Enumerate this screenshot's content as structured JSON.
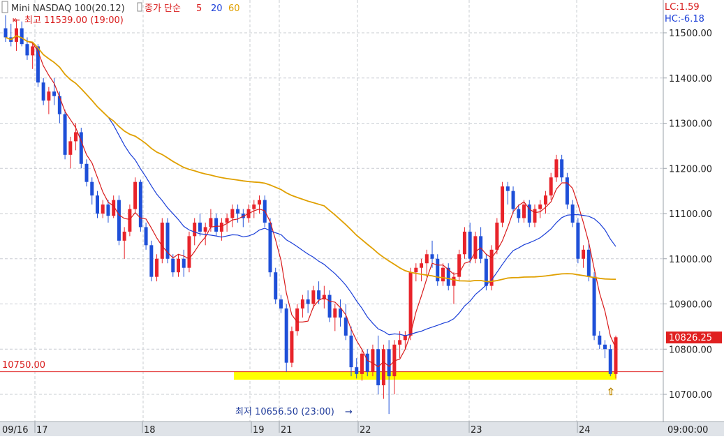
{
  "legend": {
    "instrument": "Mini NASDAQ 100(20.12)",
    "ma_label": "종가 단순",
    "ma_periods": [
      "5",
      "20",
      "60"
    ],
    "ma_colors": [
      "#d81b1b",
      "#1b3fd8",
      "#e0a000"
    ]
  },
  "top_right": {
    "lc": "LC:1.59",
    "hc": "HC:-6.18"
  },
  "annotations": {
    "high": "최고 11539.00 (19:00)",
    "low": "최저 10656.50 (23:00)",
    "ref_line_label": "10750.00",
    "current_price": "10826.25"
  },
  "colors": {
    "up": "#e8232a",
    "down": "#1e4fd8",
    "ref_line": "#e02020",
    "highlight": "#ffff00",
    "price_tag": "#e02020"
  },
  "chart_data": {
    "type": "candlestick",
    "title": "Mini NASDAQ 100(20.12)",
    "y_ticks": [
      10700,
      10800,
      10900,
      11000,
      11100,
      11200,
      11300,
      11400,
      11500
    ],
    "y_tick_labels": [
      "10700.00",
      "10800.00",
      "10900.00",
      "11000.00",
      "11100.00",
      "11200.00",
      "11300.00",
      "11400.00",
      "11500.00"
    ],
    "ylim": [
      10640,
      11560
    ],
    "x_labels": [
      "09/16",
      "17",
      "18",
      "19",
      "21",
      "22",
      "23",
      "24",
      "09:00:00"
    ],
    "grid": true,
    "reference_line": 10750,
    "last_price": 10826.25,
    "high": {
      "value": 11539,
      "time": "19:00"
    },
    "low": {
      "value": 10656.5,
      "time": "23:00"
    },
    "ohlc": [
      [
        11510,
        11539,
        11480,
        11490
      ],
      [
        11490,
        11520,
        11470,
        11480
      ],
      [
        11480,
        11530,
        11460,
        11510
      ],
      [
        11510,
        11525,
        11470,
        11475
      ],
      [
        11475,
        11490,
        11440,
        11450
      ],
      [
        11450,
        11480,
        11420,
        11470
      ],
      [
        11470,
        11475,
        11380,
        11390
      ],
      [
        11390,
        11400,
        11340,
        11350
      ],
      [
        11350,
        11380,
        11320,
        11370
      ],
      [
        11370,
        11400,
        11340,
        11360
      ],
      [
        11360,
        11370,
        11300,
        11320
      ],
      [
        11320,
        11330,
        11220,
        11230
      ],
      [
        11230,
        11270,
        11200,
        11260
      ],
      [
        11260,
        11300,
        11240,
        11280
      ],
      [
        11280,
        11290,
        11200,
        11210
      ],
      [
        11210,
        11220,
        11160,
        11170
      ],
      [
        11170,
        11180,
        11120,
        11140
      ],
      [
        11140,
        11150,
        11090,
        11100
      ],
      [
        11100,
        11130,
        11090,
        11120
      ],
      [
        11120,
        11130,
        11080,
        11095
      ],
      [
        11095,
        11140,
        11090,
        11130
      ],
      [
        11130,
        11140,
        11030,
        11040
      ],
      [
        11040,
        11070,
        11000,
        11060
      ],
      [
        11060,
        11120,
        11050,
        11110
      ],
      [
        11110,
        11180,
        11100,
        11170
      ],
      [
        11170,
        11175,
        11060,
        11070
      ],
      [
        11070,
        11080,
        11020,
        11030
      ],
      [
        11030,
        11040,
        10950,
        10960
      ],
      [
        10960,
        11010,
        10950,
        11000
      ],
      [
        11000,
        11090,
        10990,
        11080
      ],
      [
        11080,
        11090,
        10990,
        11000
      ],
      [
        11000,
        11010,
        10960,
        10970
      ],
      [
        10970,
        11010,
        10960,
        11000
      ],
      [
        11000,
        11020,
        10960,
        10980
      ],
      [
        10980,
        11060,
        10970,
        11050
      ],
      [
        11050,
        11090,
        11030,
        11080
      ],
      [
        11080,
        11100,
        11050,
        11060
      ],
      [
        11060,
        11080,
        11030,
        11070
      ],
      [
        11070,
        11110,
        11060,
        11090
      ],
      [
        11090,
        11100,
        11050,
        11060
      ],
      [
        11060,
        11090,
        11040,
        11080
      ],
      [
        11080,
        11100,
        11060,
        11090
      ],
      [
        11090,
        11120,
        11070,
        11110
      ],
      [
        11110,
        11120,
        11080,
        11100
      ],
      [
        11100,
        11110,
        11070,
        11090
      ],
      [
        11090,
        11120,
        11080,
        11110
      ],
      [
        11110,
        11130,
        11090,
        11120
      ],
      [
        11120,
        11140,
        11100,
        11130
      ],
      [
        11130,
        11140,
        11070,
        11080
      ],
      [
        11080,
        11090,
        10960,
        10970
      ],
      [
        10970,
        10980,
        10900,
        10910
      ],
      [
        10910,
        10920,
        10880,
        10890
      ],
      [
        10890,
        10900,
        10750,
        10770
      ],
      [
        10770,
        10850,
        10760,
        10840
      ],
      [
        10840,
        10900,
        10830,
        10890
      ],
      [
        10890,
        10920,
        10870,
        10910
      ],
      [
        10910,
        10930,
        10880,
        10900
      ],
      [
        10900,
        10940,
        10890,
        10930
      ],
      [
        10930,
        10950,
        10900,
        10910
      ],
      [
        10910,
        10940,
        10890,
        10920
      ],
      [
        10920,
        10930,
        10860,
        10870
      ],
      [
        10870,
        10900,
        10840,
        10890
      ],
      [
        10890,
        10910,
        10850,
        10870
      ],
      [
        10870,
        10900,
        10820,
        10830
      ],
      [
        10830,
        10850,
        10740,
        10760
      ],
      [
        10760,
        10780,
        10735,
        10745
      ],
      [
        10745,
        10800,
        10730,
        10790
      ],
      [
        10790,
        10800,
        10740,
        10750
      ],
      [
        10750,
        10810,
        10740,
        10800
      ],
      [
        10800,
        10830,
        10700,
        10720
      ],
      [
        10720,
        10810,
        10690,
        10800
      ],
      [
        10800,
        10820,
        10656.5,
        10740
      ],
      [
        10740,
        10820,
        10700,
        10810
      ],
      [
        10810,
        10840,
        10780,
        10820
      ],
      [
        10820,
        10840,
        10800,
        10830
      ],
      [
        10830,
        10980,
        10820,
        10970
      ],
      [
        10970,
        10990,
        10950,
        10980
      ],
      [
        10980,
        11000,
        10950,
        10990
      ],
      [
        10990,
        11020,
        10960,
        11010
      ],
      [
        11010,
        11040,
        10980,
        11000
      ],
      [
        11000,
        11010,
        10940,
        10950
      ],
      [
        10950,
        10990,
        10940,
        10980
      ],
      [
        10980,
        10990,
        10930,
        10940
      ],
      [
        10940,
        10970,
        10900,
        10960
      ],
      [
        10960,
        11020,
        10950,
        11010
      ],
      [
        11010,
        11070,
        11000,
        11060
      ],
      [
        11060,
        11080,
        10990,
        11000
      ],
      [
        11000,
        11060,
        10990,
        11050
      ],
      [
        11050,
        11070,
        10990,
        11000
      ],
      [
        11000,
        11010,
        10930,
        10940
      ],
      [
        10940,
        11030,
        10930,
        11020
      ],
      [
        11020,
        11090,
        11010,
        11080
      ],
      [
        11080,
        11170,
        11070,
        11160
      ],
      [
        11160,
        11170,
        11120,
        11150
      ],
      [
        11150,
        11160,
        11100,
        11110
      ],
      [
        11110,
        11120,
        11080,
        11090
      ],
      [
        11090,
        11130,
        11080,
        11120
      ],
      [
        11120,
        11130,
        11070,
        11080
      ],
      [
        11080,
        11120,
        11070,
        11110
      ],
      [
        11110,
        11130,
        11090,
        11120
      ],
      [
        11120,
        11150,
        11100,
        11140
      ],
      [
        11140,
        11190,
        11130,
        11180
      ],
      [
        11180,
        11230,
        11170,
        11220
      ],
      [
        11220,
        11230,
        11170,
        11180
      ],
      [
        11180,
        11190,
        11110,
        11120
      ],
      [
        11120,
        11130,
        11070,
        11080
      ],
      [
        11080,
        11090,
        10990,
        11000
      ],
      [
        11000,
        11030,
        10980,
        11020
      ],
      [
        11020,
        11040,
        10950,
        10960
      ],
      [
        10960,
        10970,
        10820,
        10830
      ],
      [
        10830,
        10840,
        10800,
        10810
      ],
      [
        10810,
        10820,
        10780,
        10800
      ],
      [
        10800,
        10810,
        10740,
        10745
      ],
      [
        10745,
        10830,
        10735,
        10826.25
      ]
    ]
  }
}
